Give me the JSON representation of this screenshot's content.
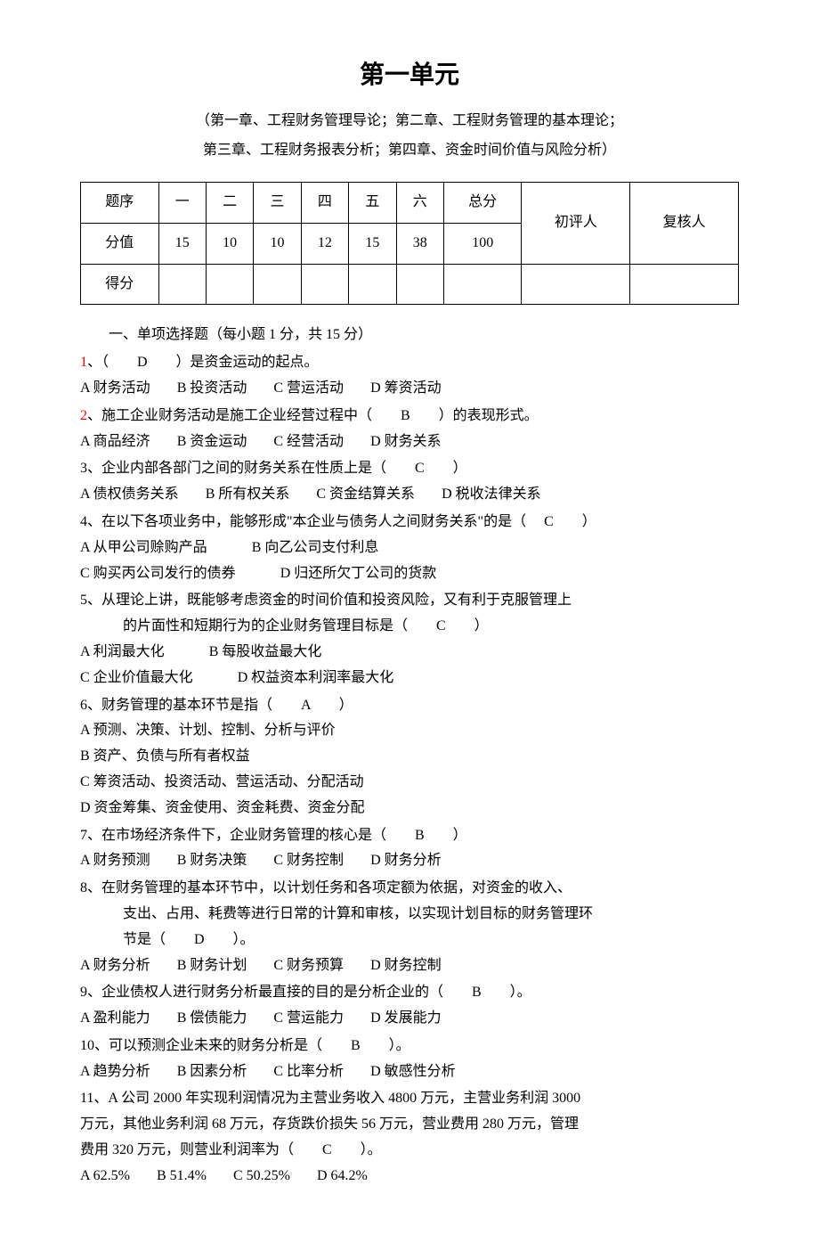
{
  "title": "第一单元",
  "subtitle1": "（第一章、工程财务管理导论；第二章、工程财务管理的基本理论；",
  "subtitle2": "第三章、工程财务报表分析；第四章、资金时间价值与风险分析）",
  "scoreTable": {
    "headers": [
      "题序",
      "一",
      "二",
      "三",
      "四",
      "五",
      "六",
      "总分",
      "初评人",
      "复核人"
    ],
    "row1Label": "分值",
    "row1Values": [
      "15",
      "10",
      "10",
      "12",
      "15",
      "38",
      "100"
    ],
    "row2Label": "得分"
  },
  "sectionHeading": "一、单项选择题（每小题 1 分，共 15 分）",
  "questions": [
    {
      "num": "1",
      "numRed": true,
      "text": "、（　　D　　）是资金运动的起点。",
      "options": [
        "A 财务活动",
        "B 投资活动",
        "C 营运活动",
        "D 筹资活动"
      ]
    },
    {
      "num": "2",
      "numRed": true,
      "text": "、施工企业财务活动是施工企业经营过程中（　　B　　）的表现形式。",
      "options": [
        "A 商品经济",
        "B 资金运动",
        "C 经营活动",
        "D 财务关系"
      ]
    },
    {
      "num": "3",
      "text": "、企业内部各部门之间的财务关系在性质上是（　　C　　）",
      "options": [
        "A 债权债务关系",
        "B 所有权关系",
        "C 资金结算关系",
        "D 税收法律关系"
      ]
    },
    {
      "num": "4",
      "text": "、在以下各项业务中，能够形成\"本企业与债务人之间财务关系\"的是（　 C　　）",
      "optionsMultiline": [
        [
          "A 从甲公司赊购产品",
          "B 向乙公司支付利息"
        ],
        [
          "C 购买丙公司发行的债券",
          "D 归还所欠丁公司的货款"
        ]
      ]
    },
    {
      "num": "5",
      "text": "、从理论上讲，既能够考虑资金的时间价值和投资风险，又有利于克服管理上",
      "textCont": "的片面性和短期行为的企业财务管理目标是（　　C　　）",
      "optionsMultiline": [
        [
          "A 利润最大化",
          "B 每股收益最大化"
        ],
        [
          "C 企业价值最大化",
          "D 权益资本利润率最大化"
        ]
      ]
    },
    {
      "num": "6",
      "text": "、财务管理的基本环节是指（　　A　　）",
      "optionsSingle": [
        "A 预测、决策、计划、控制、分析与评价",
        "B 资产、负债与所有者权益",
        "C 筹资活动、投资活动、营运活动、分配活动",
        "D 资金筹集、资金使用、资金耗费、资金分配"
      ]
    },
    {
      "num": "7",
      "text": "、在市场经济条件下，企业财务管理的核心是（　　B　　）",
      "options": [
        "A 财务预测",
        "B 财务决策",
        "C 财务控制",
        "D 财务分析"
      ]
    },
    {
      "num": "8",
      "text": "、在财务管理的基本环节中，以计划任务和各项定额为依据，对资金的收入、",
      "textCont": "支出、占用、耗费等进行日常的计算和审核，以实现计划目标的财务管理环",
      "textCont2": "节是（　　D　　）。",
      "options": [
        "A 财务分析",
        "B 财务计划",
        "C 财务预算",
        "D 财务控制"
      ]
    },
    {
      "num": "9",
      "text": "、企业债权人进行财务分析最直接的目的是分析企业的（　　B　　）。",
      "options": [
        "A 盈利能力",
        "B 偿债能力",
        "C 营运能力",
        "D 发展能力"
      ]
    },
    {
      "num": "10",
      "text": "、可以预测企业未来的财务分析是（　　B　　）。",
      "options": [
        "A 趋势分析",
        "B 因素分析",
        "C 比率分析",
        "D 敏感性分析"
      ]
    },
    {
      "num": "11",
      "text": "、A 公司 2000 年实现利润情况为主营业务收入 4800 万元，主营业务利润 3000",
      "textNoIndent1": "万元，其他业务利润 68 万元，存货跌价损失 56 万元，营业费用 280 万元，管理",
      "textNoIndent2": "费用 320 万元，则营业利润率为（　　C　　）。",
      "options": [
        "A 62.5%",
        "B 51.4%",
        "C 50.25%",
        "D 64.2%"
      ]
    }
  ]
}
